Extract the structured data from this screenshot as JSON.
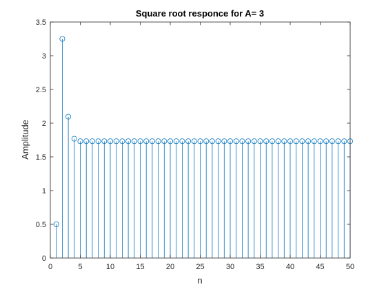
{
  "chart_data": {
    "type": "stem",
    "title": "Square root responce for A= 3",
    "xlabel": "n",
    "ylabel": "Amplitude",
    "xlim": [
      0,
      50
    ],
    "ylim": [
      0,
      3.5
    ],
    "xticks": [
      0,
      5,
      10,
      15,
      20,
      25,
      30,
      35,
      40,
      45,
      50
    ],
    "yticks": [
      0,
      0.5,
      1,
      1.5,
      2,
      2.5,
      3,
      3.5
    ],
    "xtick_labels": [
      "0",
      "5",
      "10",
      "15",
      "20",
      "25",
      "30",
      "35",
      "40",
      "45",
      "50"
    ],
    "ytick_labels": [
      "0",
      "0.5",
      "1",
      "1.5",
      "2",
      "2.5",
      "3",
      "3.5"
    ],
    "grid": false,
    "series": [
      {
        "color": "#0072BD",
        "x": [
          1,
          2,
          3,
          4,
          5,
          6,
          7,
          8,
          9,
          10,
          11,
          12,
          13,
          14,
          15,
          16,
          17,
          18,
          19,
          20,
          21,
          22,
          23,
          24,
          25,
          26,
          27,
          28,
          29,
          30,
          31,
          32,
          33,
          34,
          35,
          36,
          37,
          38,
          39,
          40,
          41,
          42,
          43,
          44,
          45,
          46,
          47,
          48,
          49,
          50
        ],
        "y": [
          0.5,
          3.25,
          2.0962,
          1.7697,
          1.7323,
          1.7321,
          1.7321,
          1.7321,
          1.7321,
          1.7321,
          1.7321,
          1.7321,
          1.7321,
          1.7321,
          1.7321,
          1.7321,
          1.7321,
          1.7321,
          1.7321,
          1.7321,
          1.7321,
          1.7321,
          1.7321,
          1.7321,
          1.7321,
          1.7321,
          1.7321,
          1.7321,
          1.7321,
          1.7321,
          1.7321,
          1.7321,
          1.7321,
          1.7321,
          1.7321,
          1.7321,
          1.7321,
          1.7321,
          1.7321,
          1.7321,
          1.7321,
          1.7321,
          1.7321,
          1.7321,
          1.7321,
          1.7321,
          1.7321,
          1.7321,
          1.7321,
          1.7321
        ]
      }
    ]
  }
}
